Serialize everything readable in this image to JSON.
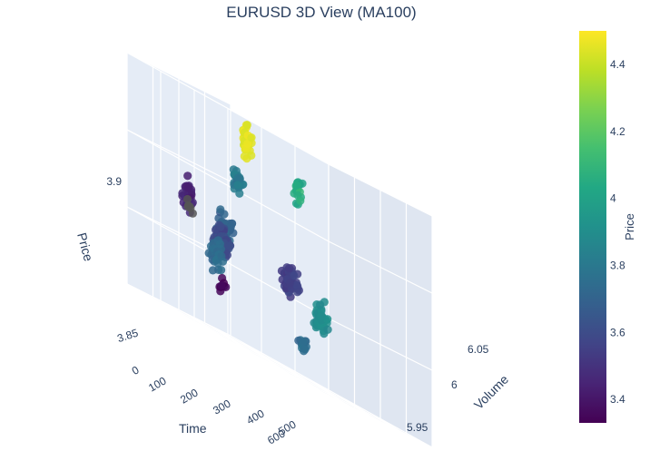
{
  "chart_data": {
    "type": "scatter",
    "title": "EURUSD 3D View (MA100)",
    "x_axis": {
      "label": "Time",
      "tick_labels": [
        "0",
        "100",
        "200",
        "300",
        "400",
        "500",
        "600"
      ]
    },
    "y_axis": {
      "label": "Volume",
      "tick_labels": [
        "5.95",
        "6",
        "6.05"
      ]
    },
    "z_axis": {
      "label": "Price",
      "tick_labels": [
        "3.85",
        "3.9"
      ]
    },
    "colorbar": {
      "title": "Price",
      "colorscale": "Viridis",
      "range": [
        3.33,
        4.5
      ],
      "tick_labels": [
        "3.4",
        "3.6",
        "3.8",
        "4",
        "4.2",
        "4.4"
      ]
    },
    "missing_color": "#555555",
    "clusters": [
      {
        "time": 50,
        "volume": 6.02,
        "price": 3.892,
        "spread": [
          10,
          0.004,
          0.008
        ],
        "n": 30,
        "color_value": 3.45
      },
      {
        "time": 90,
        "volume": 6.0,
        "price": 3.873,
        "spread": [
          15,
          0.006,
          0.006
        ],
        "n": 40,
        "color_value": 3.75
      },
      {
        "time": 130,
        "volume": 6.01,
        "price": 3.88,
        "spread": [
          20,
          0.006,
          0.006
        ],
        "n": 60,
        "color_value": 3.6
      },
      {
        "time": 180,
        "volume": 6.03,
        "price": 3.885,
        "spread": [
          20,
          0.006,
          0.007
        ],
        "n": 50,
        "color_value": 3.7
      },
      {
        "time": 240,
        "volume": 6.04,
        "price": 3.91,
        "spread": [
          12,
          0.004,
          0.006
        ],
        "n": 25,
        "color_value": 3.8
      },
      {
        "time": 290,
        "volume": 6.05,
        "price": 3.93,
        "spread": [
          12,
          0.004,
          0.006
        ],
        "n": 40,
        "color_value": 4.45
      },
      {
        "time": 330,
        "volume": 6.01,
        "price": 3.88,
        "spread": [
          20,
          0.006,
          0.006
        ],
        "n": 55,
        "color_value": 3.55
      },
      {
        "time": 380,
        "volume": 5.99,
        "price": 3.87,
        "spread": [
          18,
          0.005,
          0.006
        ],
        "n": 45,
        "color_value": 3.9
      },
      {
        "time": 420,
        "volume": 6.04,
        "price": 3.92,
        "spread": [
          12,
          0.004,
          0.006
        ],
        "n": 20,
        "color_value": 4.05
      },
      {
        "time": 260,
        "volume": 5.96,
        "price": 3.855,
        "spread": [
          10,
          0.003,
          0.004
        ],
        "n": 15,
        "color_value": 3.75
      },
      {
        "time": 40,
        "volume": 5.97,
        "price": 3.86,
        "spread": [
          10,
          0.003,
          0.004
        ],
        "n": 10,
        "color_value": 3.35
      },
      {
        "time": 30,
        "volume": 6.01,
        "price": 3.888,
        "spread": [
          10,
          0.005,
          0.004
        ],
        "n": 6,
        "color_value": null
      }
    ]
  }
}
